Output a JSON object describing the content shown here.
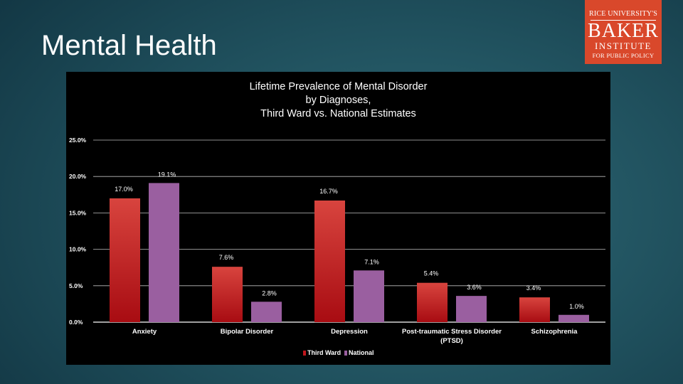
{
  "slide": {
    "title": "Mental Health"
  },
  "logo": {
    "line1": "RICE UNIVERSITY'S",
    "line2": "BAKER",
    "line3": "INSTITUTE",
    "line4": "FOR PUBLIC POLICY",
    "color": "#d9482b"
  },
  "chart_data": {
    "type": "bar",
    "title_lines": [
      "Lifetime Prevalence of Mental Disorder",
      "by Diagnoses,",
      "Third Ward vs. National Estimates"
    ],
    "categories": [
      [
        "Anxiety"
      ],
      [
        "Bipolar Disorder"
      ],
      [
        "Depression"
      ],
      [
        "Post-traumatic Stress Disorder",
        "(PTSD)"
      ],
      [
        "Schizophrenia"
      ]
    ],
    "series": [
      {
        "name": "Third Ward",
        "color": "#c0161c",
        "values": [
          17.0,
          7.6,
          16.7,
          5.4,
          3.4
        ],
        "labels": [
          "17.0%",
          "7.6%",
          "16.7%",
          "5.4%",
          "3.4%"
        ]
      },
      {
        "name": "National",
        "color": "#9a5fa0",
        "values": [
          19.1,
          2.8,
          7.1,
          3.6,
          1.0
        ],
        "labels": [
          "19.1%",
          "2.8%",
          "7.1%",
          "3.6%",
          "1.0%"
        ]
      }
    ],
    "ylim": [
      0,
      25
    ],
    "yticks": [
      0,
      5,
      10,
      15,
      20,
      25
    ],
    "ytick_labels": [
      "0.0%",
      "5.0%",
      "10.0%",
      "15.0%",
      "20.0%",
      "25.0%"
    ],
    "grid": true,
    "legend": "bottom"
  }
}
